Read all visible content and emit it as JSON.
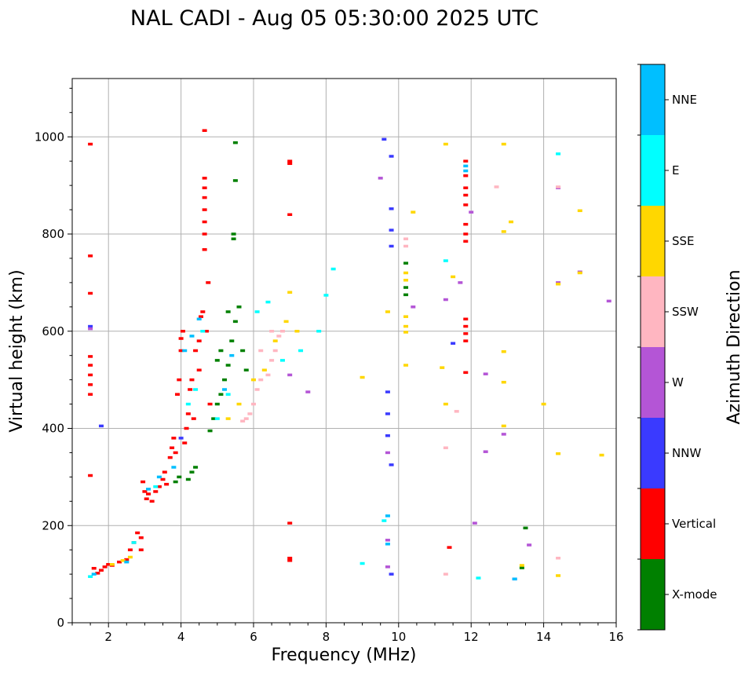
{
  "chart_data": {
    "type": "scatter",
    "title": "NAL CADI - Aug 05 05:30:00 2025 UTC",
    "xlabel": "Frequency (MHz)",
    "ylabel": "Virtual height (km)",
    "xlim": [
      1,
      16
    ],
    "ylim": [
      0,
      1120
    ],
    "xticks": [
      2,
      4,
      6,
      8,
      10,
      12,
      14,
      16
    ],
    "yticks": [
      0,
      200,
      400,
      600,
      800,
      1000
    ],
    "grid": true,
    "colorbar": {
      "label": "Azimuth Direction",
      "categories": [
        {
          "name": "X-mode",
          "color": "#008000"
        },
        {
          "name": "Vertical",
          "color": "#ff0000"
        },
        {
          "name": "NNW",
          "color": "#3a3aff"
        },
        {
          "name": "W",
          "color": "#b455d6"
        },
        {
          "name": "SSW",
          "color": "#ffb6c1"
        },
        {
          "name": "SSE",
          "color": "#ffd700"
        },
        {
          "name": "E",
          "color": "#00ffff"
        },
        {
          "name": "NNE",
          "color": "#00bfff"
        }
      ]
    },
    "series": [
      {
        "name": "Vertical",
        "points": [
          [
            1.5,
            985
          ],
          [
            1.5,
            755
          ],
          [
            1.5,
            678
          ],
          [
            1.5,
            548
          ],
          [
            1.5,
            530
          ],
          [
            1.5,
            510
          ],
          [
            1.5,
            490
          ],
          [
            1.5,
            470
          ],
          [
            1.5,
            303
          ],
          [
            1.6,
            112
          ],
          [
            1.7,
            102
          ],
          [
            1.8,
            108
          ],
          [
            1.9,
            115
          ],
          [
            2.0,
            120
          ],
          [
            2.1,
            118
          ],
          [
            2.3,
            125
          ],
          [
            2.5,
            130
          ],
          [
            2.6,
            150
          ],
          [
            2.7,
            165
          ],
          [
            2.8,
            185
          ],
          [
            2.9,
            175
          ],
          [
            2.9,
            150
          ],
          [
            2.95,
            290
          ],
          [
            3.0,
            270
          ],
          [
            3.05,
            255
          ],
          [
            3.1,
            265
          ],
          [
            3.2,
            250
          ],
          [
            3.3,
            270
          ],
          [
            3.4,
            280
          ],
          [
            3.5,
            295
          ],
          [
            3.55,
            310
          ],
          [
            3.6,
            285
          ],
          [
            3.7,
            340
          ],
          [
            3.75,
            360
          ],
          [
            3.8,
            380
          ],
          [
            3.85,
            350
          ],
          [
            3.9,
            470
          ],
          [
            3.95,
            500
          ],
          [
            4.0,
            560
          ],
          [
            4.0,
            585
          ],
          [
            4.05,
            600
          ],
          [
            4.1,
            370
          ],
          [
            4.15,
            400
          ],
          [
            4.2,
            430
          ],
          [
            4.25,
            480
          ],
          [
            4.3,
            500
          ],
          [
            4.35,
            420
          ],
          [
            4.4,
            560
          ],
          [
            4.5,
            520
          ],
          [
            4.5,
            580
          ],
          [
            4.55,
            630
          ],
          [
            4.6,
            640
          ],
          [
            4.65,
            1013
          ],
          [
            4.65,
            915
          ],
          [
            4.65,
            895
          ],
          [
            4.65,
            875
          ],
          [
            4.65,
            850
          ],
          [
            4.65,
            825
          ],
          [
            4.65,
            800
          ],
          [
            4.65,
            768
          ],
          [
            4.7,
            600
          ],
          [
            4.75,
            700
          ],
          [
            4.8,
            450
          ],
          [
            7.0,
            950
          ],
          [
            7.0,
            945
          ],
          [
            7.0,
            840
          ],
          [
            7.0,
            205
          ],
          [
            7.0,
            133
          ],
          [
            7.0,
            128
          ],
          [
            11.4,
            155
          ],
          [
            11.85,
            950
          ],
          [
            11.85,
            920
          ],
          [
            11.85,
            895
          ],
          [
            11.85,
            880
          ],
          [
            11.85,
            860
          ],
          [
            11.85,
            820
          ],
          [
            11.85,
            800
          ],
          [
            11.85,
            785
          ],
          [
            11.85,
            625
          ],
          [
            11.85,
            610
          ],
          [
            11.85,
            595
          ],
          [
            11.85,
            580
          ],
          [
            11.85,
            515
          ]
        ]
      },
      {
        "name": "X-mode",
        "points": [
          [
            3.85,
            290
          ],
          [
            3.95,
            300
          ],
          [
            4.2,
            295
          ],
          [
            4.3,
            310
          ],
          [
            4.4,
            320
          ],
          [
            4.8,
            395
          ],
          [
            4.9,
            420
          ],
          [
            5.0,
            450
          ],
          [
            5.1,
            470
          ],
          [
            5.2,
            500
          ],
          [
            5.3,
            530
          ],
          [
            5.4,
            580
          ],
          [
            5.5,
            620
          ],
          [
            5.45,
            790
          ],
          [
            5.45,
            800
          ],
          [
            5.5,
            910
          ],
          [
            5.5,
            988
          ],
          [
            5.6,
            650
          ],
          [
            5.7,
            560
          ],
          [
            5.8,
            520
          ],
          [
            5.1,
            560
          ],
          [
            5.0,
            540
          ],
          [
            5.3,
            640
          ],
          [
            10.2,
            690
          ],
          [
            10.2,
            675
          ],
          [
            10.2,
            740
          ],
          [
            13.4,
            113
          ],
          [
            13.5,
            195
          ]
        ]
      },
      {
        "name": "NNW",
        "points": [
          [
            1.5,
            610
          ],
          [
            1.8,
            405
          ],
          [
            4.0,
            380
          ],
          [
            9.6,
            995
          ],
          [
            9.7,
            475
          ],
          [
            9.7,
            430
          ],
          [
            9.7,
            385
          ],
          [
            9.8,
            960
          ],
          [
            9.8,
            852
          ],
          [
            9.8,
            808
          ],
          [
            9.8,
            775
          ],
          [
            9.8,
            325
          ],
          [
            9.8,
            100
          ],
          [
            11.5,
            575
          ],
          [
            13.2,
            90
          ]
        ]
      },
      {
        "name": "W",
        "points": [
          [
            1.5,
            605
          ],
          [
            7.0,
            510
          ],
          [
            7.5,
            475
          ],
          [
            9.5,
            915
          ],
          [
            9.7,
            350
          ],
          [
            9.7,
            170
          ],
          [
            9.7,
            115
          ],
          [
            10.4,
            650
          ],
          [
            11.3,
            665
          ],
          [
            11.7,
            700
          ],
          [
            12.0,
            845
          ],
          [
            12.1,
            205
          ],
          [
            12.4,
            352
          ],
          [
            12.4,
            512
          ],
          [
            12.9,
            388
          ],
          [
            13.6,
            160
          ],
          [
            14.4,
            700
          ],
          [
            14.4,
            895
          ],
          [
            15.0,
            722
          ],
          [
            15.8,
            662
          ]
        ]
      },
      {
        "name": "SSW",
        "points": [
          [
            5.9,
            430
          ],
          [
            6.0,
            450
          ],
          [
            6.1,
            480
          ],
          [
            6.2,
            500
          ],
          [
            6.3,
            520
          ],
          [
            6.4,
            510
          ],
          [
            6.5,
            540
          ],
          [
            6.6,
            560
          ],
          [
            6.7,
            590
          ],
          [
            6.8,
            600
          ],
          [
            5.8,
            420
          ],
          [
            5.7,
            415
          ],
          [
            6.2,
            560
          ],
          [
            6.5,
            600
          ],
          [
            10.2,
            790
          ],
          [
            10.2,
            775
          ],
          [
            11.3,
            360
          ],
          [
            11.3,
            100
          ],
          [
            11.6,
            435
          ],
          [
            12.7,
            897
          ],
          [
            14.4,
            133
          ],
          [
            14.4,
            897
          ]
        ]
      },
      {
        "name": "SSE",
        "points": [
          [
            2.1,
            120
          ],
          [
            2.4,
            128
          ],
          [
            2.6,
            135
          ],
          [
            5.3,
            420
          ],
          [
            5.6,
            450
          ],
          [
            6.0,
            500
          ],
          [
            6.3,
            520
          ],
          [
            6.6,
            580
          ],
          [
            6.9,
            620
          ],
          [
            7.0,
            680
          ],
          [
            7.2,
            600
          ],
          [
            9.0,
            505
          ],
          [
            9.7,
            640
          ],
          [
            10.2,
            630
          ],
          [
            10.2,
            610
          ],
          [
            10.2,
            598
          ],
          [
            10.2,
            530
          ],
          [
            10.2,
            720
          ],
          [
            10.2,
            705
          ],
          [
            10.4,
            845
          ],
          [
            11.2,
            525
          ],
          [
            11.3,
            450
          ],
          [
            11.3,
            985
          ],
          [
            11.5,
            712
          ],
          [
            12.9,
            405
          ],
          [
            12.9,
            495
          ],
          [
            12.9,
            558
          ],
          [
            12.9,
            805
          ],
          [
            12.9,
            985
          ],
          [
            13.1,
            825
          ],
          [
            13.4,
            118
          ],
          [
            14.0,
            450
          ],
          [
            14.4,
            348
          ],
          [
            14.4,
            97
          ],
          [
            14.4,
            697
          ],
          [
            15.0,
            848
          ],
          [
            15.0,
            720
          ],
          [
            15.6,
            345
          ]
        ]
      },
      {
        "name": "E",
        "points": [
          [
            1.5,
            95
          ],
          [
            2.7,
            165
          ],
          [
            3.3,
            280
          ],
          [
            4.2,
            450
          ],
          [
            4.4,
            480
          ],
          [
            4.6,
            600
          ],
          [
            5.0,
            420
          ],
          [
            5.3,
            470
          ],
          [
            6.1,
            640
          ],
          [
            6.4,
            660
          ],
          [
            6.8,
            540
          ],
          [
            7.3,
            560
          ],
          [
            7.8,
            600
          ],
          [
            8.0,
            674
          ],
          [
            8.2,
            728
          ],
          [
            9.0,
            122
          ],
          [
            9.6,
            210
          ],
          [
            11.3,
            745
          ],
          [
            12.2,
            92
          ],
          [
            14.4,
            965
          ]
        ]
      },
      {
        "name": "NNE",
        "points": [
          [
            1.6,
            100
          ],
          [
            2.5,
            125
          ],
          [
            3.1,
            275
          ],
          [
            3.4,
            300
          ],
          [
            3.8,
            320
          ],
          [
            4.1,
            560
          ],
          [
            4.3,
            590
          ],
          [
            4.5,
            625
          ],
          [
            5.2,
            480
          ],
          [
            5.4,
            550
          ],
          [
            9.7,
            220
          ],
          [
            9.7,
            162
          ],
          [
            11.85,
            940
          ],
          [
            11.85,
            930
          ],
          [
            13.2,
            90
          ]
        ]
      }
    ]
  }
}
